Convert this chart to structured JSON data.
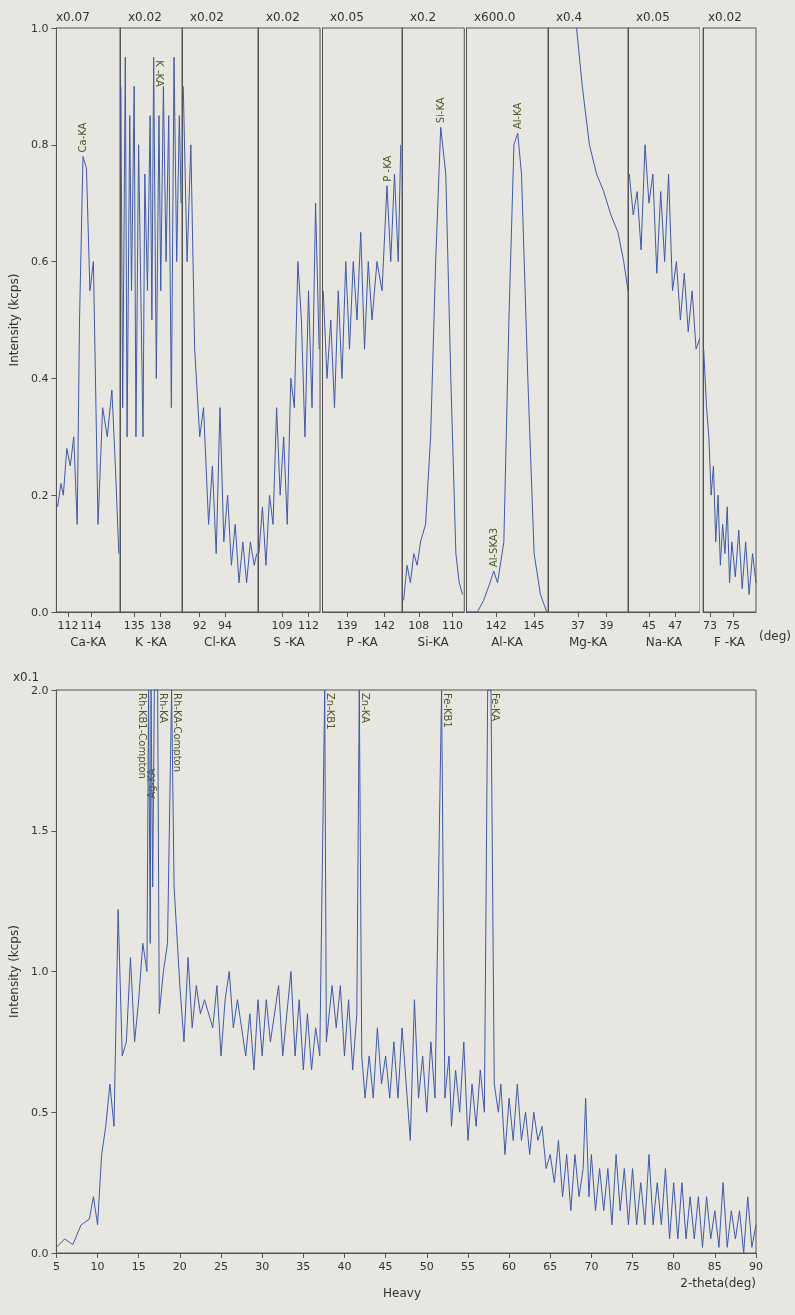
{
  "chart_data": [
    {
      "type": "line",
      "title": "x0.07",
      "xlabel": "Ca-KA",
      "ylabel": "Intensity (kcps)",
      "color": "#3f5aa8",
      "xlim": [
        111,
        116.5
      ],
      "xticks": [
        112,
        114
      ],
      "ylim": [
        0,
        1
      ],
      "yticks": [
        {
          "value": 0,
          "label": "0.0"
        },
        0.2,
        0.4,
        0.6,
        0.8,
        {
          "value": 1,
          "label": "1.0"
        }
      ],
      "x": [
        111.1,
        111.4,
        111.6,
        111.9,
        112.2,
        112.5,
        112.8,
        113.0,
        113.3,
        113.6,
        113.9,
        114.2,
        114.6,
        115.0,
        115.4,
        115.8,
        116.1,
        116.4
      ],
      "values": [
        0.18,
        0.22,
        0.2,
        0.28,
        0.25,
        0.3,
        0.15,
        0.5,
        0.78,
        0.76,
        0.55,
        0.6,
        0.15,
        0.35,
        0.3,
        0.38,
        0.25,
        0.1
      ],
      "annotations": [
        {
          "text": "Ca-KA",
          "x": 113.3,
          "y": 0.78
        }
      ]
    },
    {
      "type": "line",
      "title": "x0.02",
      "xlabel": "K -KA",
      "color": "#3f5aa8",
      "xlim": [
        133.4,
        140.4
      ],
      "xticks": [
        135,
        138
      ],
      "ylim": [
        0,
        1
      ],
      "tick_labels": "x",
      "x": [
        133.5,
        133.7,
        134.0,
        134.2,
        134.5,
        134.7,
        135.0,
        135.2,
        135.5,
        135.7,
        136.0,
        136.2,
        136.5,
        136.8,
        137.0,
        137.2,
        137.5,
        137.8,
        138.0,
        138.3,
        138.6,
        138.9,
        139.2,
        139.5,
        139.8,
        140.1,
        140.3
      ],
      "values": [
        0.9,
        0.35,
        0.95,
        0.3,
        0.85,
        0.55,
        0.9,
        0.3,
        0.8,
        0.6,
        0.3,
        0.75,
        0.55,
        0.85,
        0.5,
        0.95,
        0.4,
        0.85,
        0.55,
        0.9,
        0.6,
        0.85,
        0.35,
        0.95,
        0.6,
        0.85,
        0.7
      ],
      "annotations": [
        {
          "text": "K -KA",
          "x": 137.2,
          "y": 0.95
        }
      ]
    },
    {
      "type": "line",
      "title": "x0.02",
      "xlabel": "Cl-KA",
      "color": "#3f5aa8",
      "xlim": [
        90.6,
        96.6
      ],
      "xticks": [
        92,
        94
      ],
      "ylim": [
        0,
        1
      ],
      "tick_labels": "x",
      "x": [
        90.7,
        91.0,
        91.3,
        91.6,
        92.0,
        92.3,
        92.7,
        93.0,
        93.3,
        93.6,
        93.9,
        94.2,
        94.5,
        94.8,
        95.1,
        95.4,
        95.7,
        96.0,
        96.3,
        96.5
      ],
      "values": [
        0.9,
        0.6,
        0.8,
        0.45,
        0.3,
        0.35,
        0.15,
        0.25,
        0.1,
        0.35,
        0.12,
        0.2,
        0.08,
        0.15,
        0.05,
        0.12,
        0.05,
        0.12,
        0.08,
        0.1
      ]
    },
    {
      "type": "line",
      "title": "x0.02",
      "xlabel": "S -KA",
      "color": "#3f5aa8",
      "xlim": [
        106.3,
        113.3
      ],
      "xticks": [
        109,
        112
      ],
      "ylim": [
        0,
        1
      ],
      "tick_labels": "x",
      "x": [
        106.4,
        106.8,
        107.2,
        107.6,
        108.0,
        108.4,
        108.8,
        109.2,
        109.6,
        110.0,
        110.4,
        110.8,
        111.2,
        111.6,
        112.0,
        112.4,
        112.8,
        113.2
      ],
      "values": [
        0.1,
        0.18,
        0.08,
        0.2,
        0.15,
        0.35,
        0.2,
        0.3,
        0.15,
        0.4,
        0.35,
        0.6,
        0.5,
        0.3,
        0.55,
        0.35,
        0.7,
        0.45
      ]
    },
    {
      "type": "line",
      "title": "x0.05",
      "xlabel": "P -KA",
      "color": "#3f5aa8",
      "xlim": [
        137,
        143.4
      ],
      "xticks": [
        139,
        142
      ],
      "ylim": [
        0,
        1
      ],
      "tick_labels": "x",
      "x": [
        137.1,
        137.4,
        137.7,
        138.0,
        138.3,
        138.6,
        138.9,
        139.2,
        139.5,
        139.8,
        140.1,
        140.4,
        140.7,
        141.0,
        141.4,
        141.8,
        142.2,
        142.5,
        142.8,
        143.1,
        143.3
      ],
      "values": [
        0.55,
        0.4,
        0.5,
        0.35,
        0.55,
        0.4,
        0.6,
        0.45,
        0.6,
        0.5,
        0.65,
        0.45,
        0.6,
        0.5,
        0.6,
        0.55,
        0.73,
        0.6,
        0.75,
        0.6,
        0.8
      ],
      "annotations": [
        {
          "text": "P -KA",
          "x": 142.2,
          "y": 0.73
        }
      ]
    },
    {
      "type": "line",
      "title": "x0.2",
      "xlabel": "Si-KA",
      "color": "#3f5aa8",
      "xlim": [
        107,
        110.7
      ],
      "xticks": [
        108,
        110
      ],
      "ylim": [
        0,
        1
      ],
      "tick_labels": "x",
      "x": [
        107.1,
        107.3,
        107.5,
        107.7,
        107.9,
        108.1,
        108.4,
        108.7,
        109.0,
        109.3,
        109.6,
        109.9,
        110.2,
        110.4,
        110.6
      ],
      "values": [
        0.02,
        0.08,
        0.05,
        0.1,
        0.08,
        0.12,
        0.15,
        0.3,
        0.6,
        0.83,
        0.75,
        0.4,
        0.1,
        0.05,
        0.03
      ],
      "annotations": [
        {
          "text": "Si-KA",
          "x": 109.3,
          "y": 0.83
        }
      ]
    },
    {
      "type": "line",
      "title": "x600.0",
      "xlabel": "Al-KA",
      "color": "#3f5aa8",
      "xlim": [
        139.6,
        146.1
      ],
      "xticks": [
        142,
        145
      ],
      "ylim": [
        0,
        1
      ],
      "tick_labels": "x",
      "x": [
        139.7,
        140.5,
        141.0,
        141.5,
        141.8,
        142.1,
        142.6,
        143.0,
        143.4,
        143.7,
        144.0,
        144.5,
        145.0,
        145.5,
        146.0
      ],
      "values": [
        0,
        0,
        0.02,
        0.05,
        0.07,
        0.05,
        0.12,
        0.5,
        0.8,
        0.82,
        0.75,
        0.4,
        0.1,
        0.03,
        0
      ],
      "annotations": [
        {
          "text": "Al-KA",
          "x": 143.7,
          "y": 0.82
        },
        {
          "text": "Al-SKA3",
          "x": 141.8,
          "y": 0.07
        }
      ]
    },
    {
      "type": "line",
      "title": "x0.4",
      "xlabel": "Mg-KA",
      "color": "#3f5aa8",
      "xlim": [
        34.9,
        40.5
      ],
      "xticks": [
        37,
        39
      ],
      "ylim": [
        0,
        1
      ],
      "tick_labels": "x",
      "x": [
        36.9,
        37.3,
        37.8,
        38.3,
        38.8,
        39.3,
        39.8,
        40.2,
        40.5
      ],
      "values": [
        1,
        0.9,
        0.8,
        0.75,
        0.72,
        0.68,
        0.65,
        0.6,
        0.55
      ]
    },
    {
      "type": "line",
      "title": "x0.05",
      "xlabel": "Na-KA",
      "color": "#3f5aa8",
      "xlim": [
        43.4,
        48.9
      ],
      "xticks": [
        45,
        47
      ],
      "ylim": [
        0,
        1
      ],
      "tick_labels": "x",
      "x": [
        43.5,
        43.8,
        44.1,
        44.4,
        44.7,
        45.0,
        45.3,
        45.6,
        45.9,
        46.2,
        46.5,
        46.8,
        47.1,
        47.4,
        47.7,
        48.0,
        48.3,
        48.6,
        48.9
      ],
      "values": [
        0.75,
        0.68,
        0.72,
        0.62,
        0.8,
        0.7,
        0.75,
        0.58,
        0.72,
        0.6,
        0.75,
        0.55,
        0.6,
        0.5,
        0.58,
        0.48,
        0.55,
        0.45,
        0.47
      ]
    },
    {
      "type": "line",
      "title": "x0.02",
      "xlabel": "F -KA",
      "color": "#3f5aa8",
      "xlim": [
        72.4,
        77
      ],
      "xticks": [
        73,
        75
      ],
      "ylim": [
        0,
        1
      ],
      "tick_labels": "x",
      "x": [
        72.45,
        72.7,
        72.9,
        73.1,
        73.3,
        73.5,
        73.7,
        73.9,
        74.1,
        74.3,
        74.5,
        74.7,
        74.9,
        75.2,
        75.5,
        75.8,
        76.1,
        76.4,
        76.7,
        77.0
      ],
      "values": [
        0.45,
        0.35,
        0.3,
        0.2,
        0.25,
        0.12,
        0.2,
        0.08,
        0.15,
        0.1,
        0.18,
        0.05,
        0.12,
        0.06,
        0.14,
        0.04,
        0.12,
        0.03,
        0.1,
        0.05
      ],
      "annotations": [
        "(deg)"
      ]
    },
    {
      "type": "line",
      "title": "x0.1",
      "xlabel": "2-theta(deg)",
      "ylabel": "Intensity (kcps)",
      "color": "#3f5aa8",
      "xlim": [
        5,
        90
      ],
      "xticks": [
        5,
        10,
        15,
        20,
        25,
        30,
        35,
        40,
        45,
        50,
        55,
        60,
        65,
        70,
        75,
        80,
        85,
        90
      ],
      "ylim": [
        0,
        2
      ],
      "yticks": [
        {
          "value": 0,
          "label": "0.0"
        },
        0.5,
        {
          "value": 1,
          "label": "1.0"
        },
        1.5,
        {
          "value": 2,
          "label": "2.0"
        }
      ],
      "x": [
        5,
        6,
        7,
        8,
        9,
        9.5,
        10,
        10.5,
        11,
        11.5,
        12,
        12.5,
        13,
        13.5,
        14,
        14.5,
        15,
        15.5,
        16,
        16.2,
        16.4,
        16.5,
        16.7,
        16.9,
        17.3,
        17.5,
        18,
        18.5,
        19,
        19.3,
        19.7,
        20,
        20.5,
        21,
        21.5,
        22,
        22.5,
        23,
        24,
        24.5,
        25,
        25.5,
        26,
        26.5,
        27,
        28,
        28.5,
        29,
        29.5,
        30,
        30.5,
        31,
        32,
        32.5,
        33,
        33.5,
        34,
        34.5,
        35,
        35.5,
        36,
        36.5,
        37,
        37.6,
        37.8,
        38.5,
        39,
        39.5,
        40,
        40.5,
        41,
        41.5,
        41.8,
        42.1,
        42.5,
        43,
        43.5,
        44,
        44.5,
        45,
        45.5,
        46,
        46.5,
        47,
        47.5,
        48,
        48.5,
        49,
        49.5,
        50,
        50.5,
        51,
        51.8,
        52.2,
        52.7,
        53,
        53.5,
        54,
        54.5,
        55,
        55.5,
        56,
        56.5,
        57,
        57.4,
        57.8,
        58.2,
        58.7,
        59,
        59.5,
        60,
        60.5,
        61,
        61.5,
        62,
        62.5,
        63,
        63.5,
        64,
        64.5,
        65,
        65.5,
        66,
        66.5,
        67,
        67.5,
        68,
        68.5,
        69,
        69.3,
        69.7,
        70,
        70.5,
        71,
        71.5,
        72,
        72.5,
        73,
        73.5,
        74,
        74.5,
        75,
        75.5,
        76,
        76.5,
        77,
        77.5,
        78,
        78.5,
        79,
        79.5,
        80,
        80.5,
        81,
        81.5,
        82,
        82.5,
        83,
        83.5,
        84,
        84.5,
        85,
        85.5,
        86,
        86.5,
        87,
        87.5,
        88,
        88.5,
        89,
        89.5,
        90
      ],
      "values": [
        0.02,
        0.05,
        0.03,
        0.1,
        0.12,
        0.2,
        0.1,
        0.35,
        0.45,
        0.6,
        0.45,
        1.22,
        0.7,
        0.75,
        1.05,
        0.75,
        0.9,
        1.1,
        1.0,
        2.0,
        1.1,
        2.0,
        1.3,
        2.0,
        2.0,
        0.85,
        1.0,
        1.1,
        2.0,
        1.3,
        1.1,
        0.95,
        0.75,
        1.05,
        0.8,
        0.95,
        0.85,
        0.9,
        0.8,
        0.95,
        0.7,
        0.9,
        1.0,
        0.8,
        0.9,
        0.7,
        0.85,
        0.65,
        0.9,
        0.7,
        0.9,
        0.75,
        0.95,
        0.7,
        0.85,
        1.0,
        0.7,
        0.9,
        0.65,
        0.85,
        0.65,
        0.8,
        0.7,
        2.0,
        0.75,
        0.95,
        0.8,
        0.95,
        0.7,
        0.9,
        0.65,
        0.85,
        2.0,
        0.7,
        0.55,
        0.7,
        0.55,
        0.8,
        0.6,
        0.7,
        0.55,
        0.75,
        0.55,
        0.8,
        0.6,
        0.4,
        0.9,
        0.55,
        0.7,
        0.5,
        0.75,
        0.55,
        2.0,
        0.55,
        0.7,
        0.45,
        0.65,
        0.5,
        0.75,
        0.4,
        0.6,
        0.45,
        0.65,
        0.5,
        2.0,
        2.0,
        0.6,
        0.5,
        0.6,
        0.35,
        0.55,
        0.4,
        0.6,
        0.4,
        0.5,
        0.35,
        0.5,
        0.4,
        0.45,
        0.3,
        0.35,
        0.25,
        0.4,
        0.2,
        0.35,
        0.15,
        0.35,
        0.2,
        0.3,
        0.55,
        0.2,
        0.35,
        0.15,
        0.3,
        0.15,
        0.3,
        0.1,
        0.35,
        0.15,
        0.3,
        0.1,
        0.3,
        0.1,
        0.25,
        0.1,
        0.35,
        0.1,
        0.25,
        0.1,
        0.3,
        0.05,
        0.25,
        0.05,
        0.25,
        0.05,
        0.2,
        0.05,
        0.2,
        0.02,
        0.2,
        0.05,
        0.15,
        0.02,
        0.25,
        0.02,
        0.15,
        0.05,
        0.15,
        0,
        0.2,
        0.02,
        0.1
      ],
      "annotations": [
        "Heavy",
        {
          "text": "Rh-KB1-Compton",
          "x": 16.2,
          "y": 2
        },
        {
          "text": "Ag-KA",
          "x": 16.5,
          "y": 1.6
        },
        {
          "text": "Rh-KA",
          "x": 17.3,
          "y": 2
        },
        {
          "text": "Rh-KA-Compton",
          "x": 19,
          "y": 2
        },
        {
          "text": "Zn-KB1",
          "x": 37.6,
          "y": 2
        },
        {
          "text": "Zn-KA",
          "x": 41.8,
          "y": 2
        },
        {
          "text": "Fe-KB1",
          "x": 51.8,
          "y": 2
        },
        {
          "text": "Fe-KA",
          "x": 57.6,
          "y": 2
        }
      ]
    }
  ]
}
